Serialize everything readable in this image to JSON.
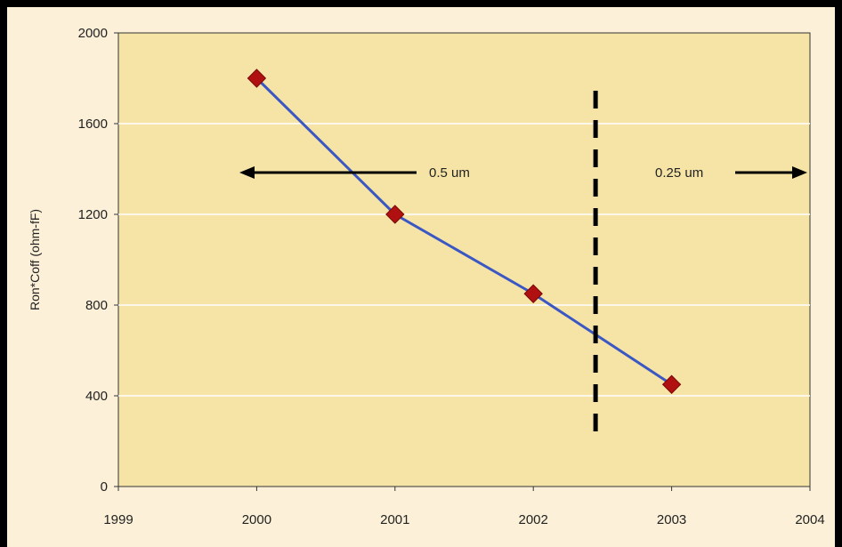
{
  "chart_data": {
    "type": "line",
    "title": "",
    "xlabel": "",
    "ylabel": "Ron*Coff (ohm-fF)",
    "xlim": [
      1999,
      2004
    ],
    "ylim": [
      0,
      2000
    ],
    "x_ticks": [
      "1999",
      "2000",
      "2001",
      "2002",
      "2003",
      "2004"
    ],
    "y_ticks": [
      "0",
      "400",
      "800",
      "1200",
      "1600",
      "2000"
    ],
    "grid": true,
    "legend": "none",
    "series": [
      {
        "x": [
          2000,
          2001,
          2002,
          2003
        ],
        "y": [
          1800,
          1200,
          850,
          450
        ]
      }
    ],
    "annotations": {
      "divider_x": 2002.45,
      "left_arrow_label": "0.5 um",
      "right_arrow_label": "0.25 um"
    },
    "colors": {
      "plot_background": "#f5e4a6",
      "page_background": "#fcf1d8",
      "line": "#3b57c4",
      "marker": "#b01010",
      "grid": "#ffffff"
    }
  }
}
